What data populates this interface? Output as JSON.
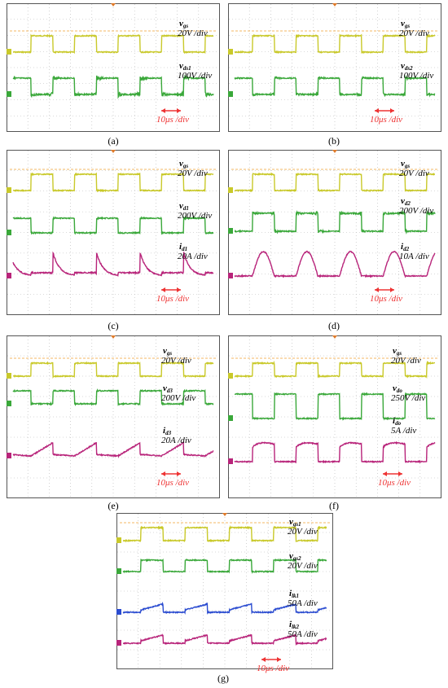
{
  "time_base": "10μs /div",
  "chart_data": [
    {
      "id": "a",
      "type": "line",
      "caption": "(a)",
      "time_base": "10μs /div",
      "channels": [
        {
          "label_main": "v",
          "label_sub": "gs",
          "scale": "20V /div",
          "color": "#c9c92a",
          "waveform": "square",
          "ringing": 0.05
        },
        {
          "label_main": "v",
          "label_sub": "ds1",
          "scale": "100V /div",
          "color": "#3aa83a",
          "waveform": "square-inverted",
          "ringing": 0.5
        }
      ]
    },
    {
      "id": "b",
      "type": "line",
      "caption": "(b)",
      "time_base": "10μs /div",
      "channels": [
        {
          "label_main": "v",
          "label_sub": "gs",
          "scale": "20V /div",
          "color": "#c9c92a",
          "waveform": "square",
          "ringing": 0.05
        },
        {
          "label_main": "v",
          "label_sub": "ds2",
          "scale": "100V /div",
          "color": "#3aa83a",
          "waveform": "square-inverted",
          "ringing": 0.25
        }
      ]
    },
    {
      "id": "c",
      "type": "line",
      "caption": "(c)",
      "time_base": "10μs /div",
      "channels": [
        {
          "label_main": "v",
          "label_sub": "gs",
          "scale": "20V /div",
          "color": "#c9c92a",
          "waveform": "square",
          "ringing": 0.05
        },
        {
          "label_main": "v",
          "label_sub": "d1",
          "scale": "200V /div",
          "color": "#3aa83a",
          "waveform": "square-inverted",
          "ringing": 0.1
        },
        {
          "label_main": "i",
          "label_sub": "d1",
          "scale": "20A /div",
          "color": "#b8247a",
          "waveform": "spike-decay",
          "ringing": 0.1
        }
      ]
    },
    {
      "id": "d",
      "type": "line",
      "caption": "(d)",
      "time_base": "10μs /div",
      "channels": [
        {
          "label_main": "v",
          "label_sub": "gs",
          "scale": "20V /div",
          "color": "#c9c92a",
          "waveform": "square",
          "ringing": 0.05
        },
        {
          "label_main": "v",
          "label_sub": "d2",
          "scale": "200V /div",
          "color": "#3aa83a",
          "waveform": "square",
          "ringing": 0.35
        },
        {
          "label_main": "i",
          "label_sub": "d2",
          "scale": "10A /div",
          "color": "#b8247a",
          "waveform": "dome",
          "ringing": 0.05
        }
      ]
    },
    {
      "id": "e",
      "type": "line",
      "caption": "(e)",
      "time_base": "10μs /div",
      "channels": [
        {
          "label_main": "v",
          "label_sub": "gs",
          "scale": "20V /div",
          "color": "#c9c92a",
          "waveform": "square",
          "ringing": 0.05
        },
        {
          "label_main": "v",
          "label_sub": "d3",
          "scale": "200V /div",
          "color": "#3aa83a",
          "waveform": "square-inverted",
          "ringing": 0.1
        },
        {
          "label_main": "i",
          "label_sub": "d3",
          "scale": "20A /div",
          "color": "#b8247a",
          "waveform": "ramp",
          "ringing": 0.05
        }
      ]
    },
    {
      "id": "f",
      "type": "line",
      "caption": "(f)",
      "time_base": "10μs /div",
      "channels": [
        {
          "label_main": "v",
          "label_sub": "gs",
          "scale": "20V /div",
          "color": "#c9c92a",
          "waveform": "square",
          "ringing": 0.05
        },
        {
          "label_main": "v",
          "label_sub": "do",
          "scale": "250V /div",
          "color": "#3aa83a",
          "waveform": "square-inverted",
          "ringing": 0.05
        },
        {
          "label_main": "i",
          "label_sub": "do",
          "scale": "5A /div",
          "color": "#b8247a",
          "waveform": "dome-dip",
          "ringing": 0.05
        }
      ]
    },
    {
      "id": "g",
      "type": "line",
      "caption": "(g)",
      "time_base": "10μs /div",
      "channels": [
        {
          "label_main": "v",
          "label_sub": "gs1",
          "scale": "20V /div",
          "color": "#c9c92a",
          "waveform": "square",
          "ringing": 0.05
        },
        {
          "label_main": "v",
          "label_sub": "gs2",
          "scale": "20V /div",
          "color": "#3aa83a",
          "waveform": "square",
          "ringing": 0.05
        },
        {
          "label_main": "i",
          "label_sub": "lk1",
          "scale": "50A /div",
          "color": "#2a4bd0",
          "waveform": "ramp-square",
          "ringing": 0.05
        },
        {
          "label_main": "i",
          "label_sub": "lk2",
          "scale": "50A /div",
          "color": "#b8247a",
          "waveform": "ramp-square",
          "ringing": 0.05
        }
      ]
    }
  ]
}
